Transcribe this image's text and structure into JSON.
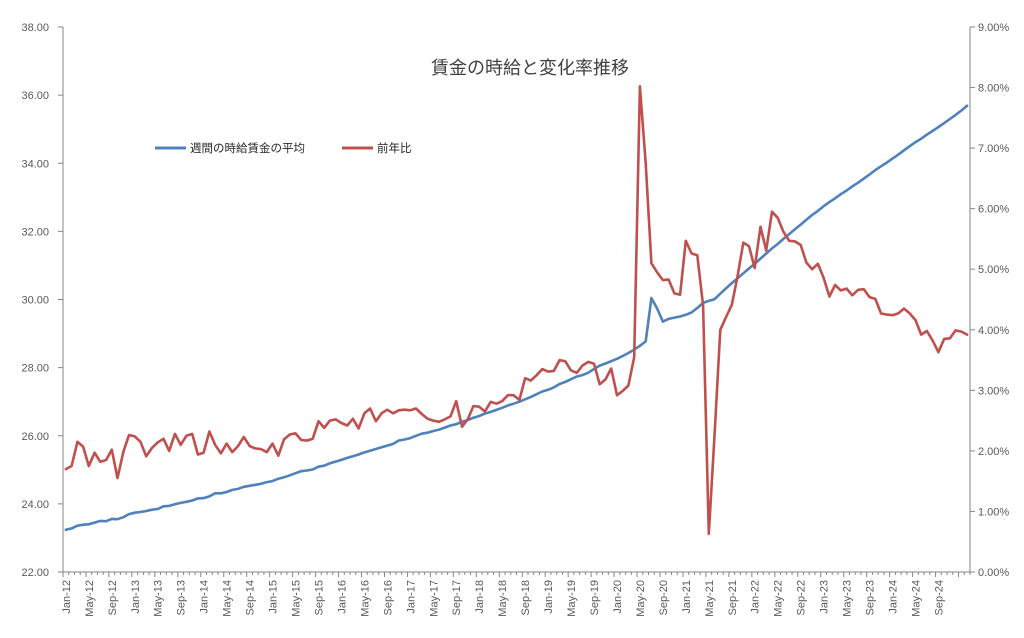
{
  "chart_data": {
    "type": "line",
    "title": "賃金の時給と変化率推移",
    "x_tick_labels": [
      "Jan-12",
      "May-12",
      "Sep-12",
      "Jan-13",
      "May-13",
      "Sep-13",
      "Jan-14",
      "May-14",
      "Sep-14",
      "Jan-15",
      "May-15",
      "Sep-15",
      "Jan-16",
      "May-16",
      "Sep-16",
      "Jan-17",
      "May-17",
      "Sep-17",
      "Jan-18",
      "May-18",
      "Sep-18",
      "Jan-19",
      "May-19",
      "Sep-19",
      "Jan-20",
      "May-20",
      "Sep-20",
      "Jan-21",
      "May-21",
      "Sep-21",
      "Jan-22",
      "May-22",
      "Sep-22",
      "Jan-23",
      "May-23",
      "Sep-23",
      "Jan-24",
      "May-24",
      "Sep-24"
    ],
    "y_left": {
      "ylim": [
        22,
        38
      ],
      "ticks": [
        "22.00",
        "24.00",
        "26.00",
        "28.00",
        "30.00",
        "32.00",
        "34.00",
        "36.00",
        "38.00"
      ]
    },
    "y_right": {
      "ylim": [
        0,
        9
      ],
      "ticks": [
        "0.00%",
        "1.00%",
        "2.00%",
        "3.00%",
        "4.00%",
        "5.00%",
        "6.00%",
        "7.00%",
        "8.00%",
        "9.00%"
      ]
    },
    "legend_placement": "top-left",
    "grid": false,
    "series": [
      {
        "name": "週間の時給賃金の平均",
        "axis": "left",
        "color": "#4F81BD",
        "values": [
          23.24,
          23.28,
          23.36,
          23.39,
          23.4,
          23.45,
          23.5,
          23.49,
          23.56,
          23.55,
          23.61,
          23.7,
          23.74,
          23.76,
          23.79,
          23.83,
          23.85,
          23.93,
          23.94,
          23.99,
          24.03,
          24.06,
          24.1,
          24.16,
          24.17,
          24.22,
          24.31,
          24.31,
          24.35,
          24.41,
          24.44,
          24.5,
          24.53,
          24.56,
          24.59,
          24.64,
          24.67,
          24.74,
          24.78,
          24.84,
          24.9,
          24.96,
          24.98,
          25.01,
          25.09,
          25.12,
          25.19,
          25.24,
          25.29,
          25.35,
          25.4,
          25.45,
          25.51,
          25.56,
          25.61,
          25.66,
          25.71,
          25.76,
          25.86,
          25.89,
          25.93,
          26.0,
          26.06,
          26.09,
          26.14,
          26.18,
          26.24,
          26.3,
          26.34,
          26.41,
          26.46,
          26.53,
          26.58,
          26.65,
          26.7,
          26.76,
          26.82,
          26.89,
          26.94,
          27.0,
          27.07,
          27.14,
          27.22,
          27.3,
          27.35,
          27.42,
          27.52,
          27.58,
          27.66,
          27.74,
          27.78,
          27.85,
          27.96,
          28.06,
          28.12,
          28.19,
          28.26,
          28.34,
          28.43,
          28.53,
          28.64,
          28.77,
          30.04,
          29.74,
          29.35,
          29.43,
          29.47,
          29.5,
          29.55,
          29.62,
          29.75,
          29.9,
          29.96,
          30.01,
          30.17,
          30.33,
          30.48,
          30.62,
          30.77,
          30.91,
          31.05,
          31.2,
          31.35,
          31.5,
          31.63,
          31.78,
          31.92,
          32.06,
          32.2,
          32.34,
          32.48,
          32.6,
          32.74,
          32.86,
          32.97,
          33.09,
          33.2,
          33.32,
          33.43,
          33.55,
          33.67,
          33.8,
          33.91,
          34.02,
          34.14,
          34.25,
          34.38,
          34.5,
          34.62,
          34.72,
          34.84,
          34.95,
          35.06,
          35.18,
          35.3,
          35.42,
          35.55,
          35.69
        ]
      },
      {
        "name": "前年比",
        "axis": "right",
        "color": "#C0504D",
        "values": [
          1.7,
          1.75,
          2.15,
          2.07,
          1.75,
          1.97,
          1.82,
          1.85,
          2.02,
          1.55,
          1.98,
          2.26,
          2.24,
          2.15,
          1.91,
          2.05,
          2.14,
          2.2,
          2.0,
          2.28,
          2.1,
          2.25,
          2.28,
          1.94,
          1.97,
          2.32,
          2.1,
          1.96,
          2.12,
          1.98,
          2.08,
          2.23,
          2.08,
          2.04,
          2.03,
          1.98,
          2.12,
          1.92,
          2.19,
          2.27,
          2.29,
          2.18,
          2.17,
          2.2,
          2.49,
          2.38,
          2.5,
          2.52,
          2.46,
          2.42,
          2.53,
          2.37,
          2.62,
          2.7,
          2.49,
          2.62,
          2.68,
          2.62,
          2.67,
          2.68,
          2.67,
          2.7,
          2.61,
          2.53,
          2.5,
          2.48,
          2.52,
          2.57,
          2.82,
          2.4,
          2.52,
          2.74,
          2.73,
          2.65,
          2.81,
          2.78,
          2.82,
          2.92,
          2.92,
          2.84,
          3.2,
          3.16,
          3.25,
          3.35,
          3.31,
          3.32,
          3.5,
          3.48,
          3.33,
          3.29,
          3.41,
          3.47,
          3.44,
          3.1,
          3.18,
          3.36,
          2.92,
          2.99,
          3.08,
          3.55,
          8.02,
          6.75,
          5.1,
          4.95,
          4.82,
          4.83,
          4.6,
          4.58,
          5.47,
          5.26,
          5.23,
          4.4,
          0.63,
          2.25,
          4.0,
          4.21,
          4.41,
          4.88,
          5.44,
          5.38,
          5.02,
          5.7,
          5.31,
          5.95,
          5.85,
          5.62,
          5.47,
          5.46,
          5.4,
          5.11,
          5.0,
          5.09,
          4.86,
          4.55,
          4.74,
          4.65,
          4.68,
          4.57,
          4.66,
          4.67,
          4.54,
          4.51,
          4.27,
          4.25,
          4.24,
          4.27,
          4.35,
          4.27,
          4.16,
          3.92,
          3.98,
          3.82,
          3.63,
          3.85,
          3.86,
          3.99,
          3.97,
          3.92
        ]
      }
    ]
  }
}
